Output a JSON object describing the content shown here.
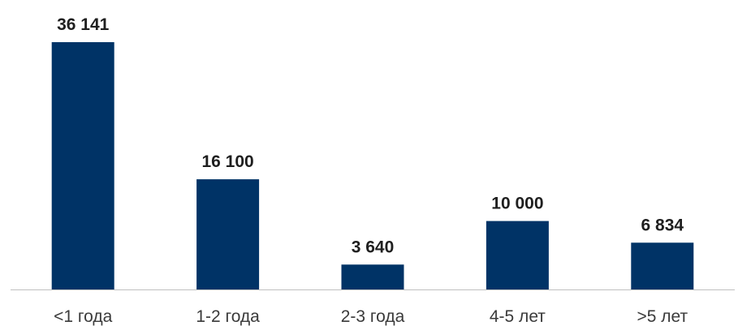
{
  "chart_data": {
    "type": "bar",
    "categories": [
      "<1 года",
      "1-2 года",
      "2-3 года",
      "4-5 лет",
      ">5 лет"
    ],
    "values": [
      36141,
      16100,
      3640,
      10000,
      6834
    ],
    "value_labels": [
      "36 141",
      "16 100",
      "3 640",
      "10 000",
      "6 834"
    ],
    "title": "",
    "xlabel": "",
    "ylabel": "",
    "ylim": [
      0,
      36141
    ],
    "grid": false,
    "legend": "none",
    "bar_color": "#003366",
    "axis_color": "#bfbfbf"
  }
}
